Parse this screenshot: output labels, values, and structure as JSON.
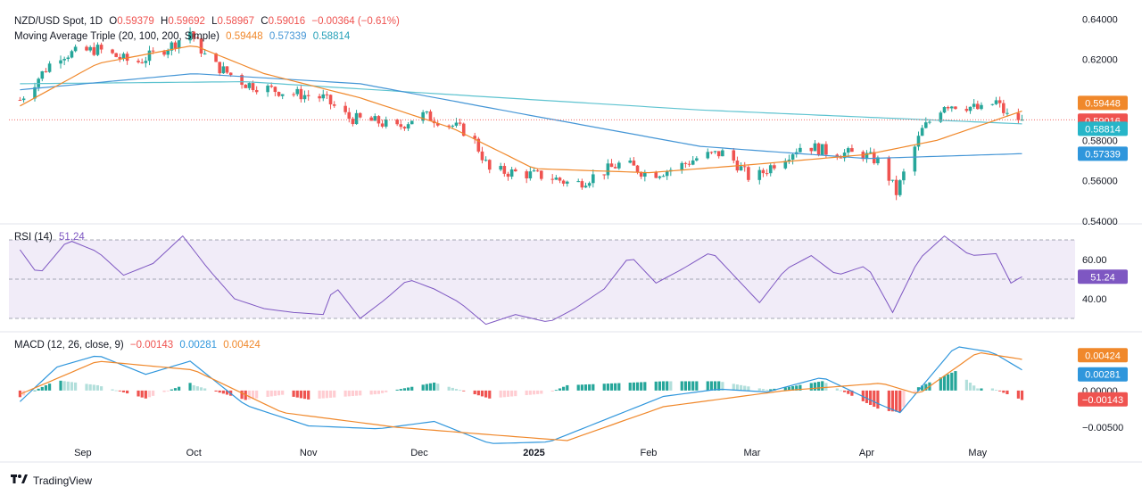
{
  "header": {
    "symbol": "NZD/USD Spot, 1D",
    "open_label": "O",
    "open": "0.59379",
    "high_label": "H",
    "high": "0.59692",
    "low_label": "L",
    "low": "0.58967",
    "close_label": "C",
    "close": "0.59016",
    "change": "−0.00364 (−0.61%)"
  },
  "ma_legend": {
    "title": "Moving Average Triple (20, 100, 200, Simple)",
    "ma20": "0.59448",
    "ma100": "0.57339",
    "ma200": "0.58814"
  },
  "rsi_legend": {
    "title": "RSI (14)",
    "value": "51.24"
  },
  "macd_legend": {
    "title": "MACD (12, 26, close, 9)",
    "hist": "−0.00143",
    "macd": "0.00281",
    "signal": "0.00424"
  },
  "footer": {
    "brand": "TradingView"
  },
  "colors": {
    "up": "#26a69a",
    "down": "#ef5350",
    "ma20": "#f0882b",
    "ma100": "#4596d6",
    "ma200": "#5ec3d0",
    "rsi": "#7e57c2",
    "macd": "#2f96dc",
    "signal": "#f0882b",
    "hist_up_strong": "#26a69a",
    "hist_up_weak": "#b2dfdb",
    "hist_down_strong": "#ef5350",
    "hist_down_weak": "#ffcdd2"
  },
  "chart_data": [
    {
      "type": "candlestick",
      "name": "NZD/USD Spot, 1D",
      "x_tick_labels": [
        "Sep",
        "Oct",
        "Nov",
        "Dec",
        "2025",
        "Feb",
        "Mar",
        "Apr",
        "May"
      ],
      "y_tick_labels": [
        "0.64000",
        "0.62000",
        "0.60000",
        "0.58000",
        "0.56000",
        "0.54000"
      ],
      "ylim": [
        0.54,
        0.645
      ],
      "close_anchors": [
        {
          "date": "2024-08-15",
          "close": 0.6
        },
        {
          "date": "2024-08-25",
          "close": 0.622
        },
        {
          "date": "2024-09-05",
          "close": 0.625
        },
        {
          "date": "2024-09-15",
          "close": 0.618
        },
        {
          "date": "2024-09-25",
          "close": 0.627
        },
        {
          "date": "2024-09-30",
          "close": 0.634
        },
        {
          "date": "2024-10-05",
          "close": 0.619
        },
        {
          "date": "2024-10-15",
          "close": 0.608
        },
        {
          "date": "2024-10-25",
          "close": 0.604
        },
        {
          "date": "2024-11-05",
          "close": 0.601
        },
        {
          "date": "2024-11-12",
          "close": 0.591
        },
        {
          "date": "2024-11-20",
          "close": 0.589
        },
        {
          "date": "2024-11-25",
          "close": 0.586
        },
        {
          "date": "2024-12-01",
          "close": 0.593
        },
        {
          "date": "2024-12-08",
          "close": 0.589
        },
        {
          "date": "2024-12-15",
          "close": 0.583
        },
        {
          "date": "2024-12-20",
          "close": 0.565
        },
        {
          "date": "2024-12-27",
          "close": 0.564
        },
        {
          "date": "2025-01-05",
          "close": 0.562
        },
        {
          "date": "2025-01-12",
          "close": 0.558
        },
        {
          "date": "2025-01-18",
          "close": 0.563
        },
        {
          "date": "2025-01-25",
          "close": 0.569
        },
        {
          "date": "2025-02-01",
          "close": 0.563
        },
        {
          "date": "2025-02-08",
          "close": 0.566
        },
        {
          "date": "2025-02-15",
          "close": 0.572
        },
        {
          "date": "2025-02-22",
          "close": 0.574
        },
        {
          "date": "2025-03-01",
          "close": 0.56
        },
        {
          "date": "2025-03-08",
          "close": 0.57
        },
        {
          "date": "2025-03-15",
          "close": 0.578
        },
        {
          "date": "2025-03-22",
          "close": 0.574
        },
        {
          "date": "2025-03-31",
          "close": 0.573
        },
        {
          "date": "2025-04-05",
          "close": 0.569
        },
        {
          "date": "2025-04-09",
          "close": 0.554
        },
        {
          "date": "2025-04-12",
          "close": 0.568
        },
        {
          "date": "2025-04-16",
          "close": 0.585
        },
        {
          "date": "2025-04-22",
          "close": 0.598
        },
        {
          "date": "2025-04-28",
          "close": 0.597
        },
        {
          "date": "2025-05-02",
          "close": 0.595
        },
        {
          "date": "2025-05-06",
          "close": 0.599
        },
        {
          "date": "2025-05-09",
          "close": 0.592
        },
        {
          "date": "2025-05-13",
          "close": 0.59016
        }
      ],
      "ma20_points": [
        {
          "date": "2024-08-15",
          "value": 0.597
        },
        {
          "date": "2024-09-05",
          "value": 0.618
        },
        {
          "date": "2024-10-01",
          "value": 0.627
        },
        {
          "date": "2024-10-20",
          "value": 0.613
        },
        {
          "date": "2024-11-15",
          "value": 0.601
        },
        {
          "date": "2024-12-10",
          "value": 0.586
        },
        {
          "date": "2025-01-01",
          "value": 0.566
        },
        {
          "date": "2025-02-01",
          "value": 0.564
        },
        {
          "date": "2025-03-01",
          "value": 0.568
        },
        {
          "date": "2025-04-01",
          "value": 0.573
        },
        {
          "date": "2025-04-20",
          "value": 0.58
        },
        {
          "date": "2025-05-13",
          "value": 0.59448
        }
      ],
      "ma100_points": [
        {
          "date": "2024-08-15",
          "value": 0.605
        },
        {
          "date": "2024-10-01",
          "value": 0.613
        },
        {
          "date": "2024-11-15",
          "value": 0.608
        },
        {
          "date": "2025-01-01",
          "value": 0.592
        },
        {
          "date": "2025-02-15",
          "value": 0.577
        },
        {
          "date": "2025-04-01",
          "value": 0.571
        },
        {
          "date": "2025-05-13",
          "value": 0.57339
        }
      ],
      "ma200_points": [
        {
          "date": "2024-08-15",
          "value": 0.608
        },
        {
          "date": "2024-10-15",
          "value": 0.609
        },
        {
          "date": "2024-12-15",
          "value": 0.602
        },
        {
          "date": "2025-02-15",
          "value": 0.595
        },
        {
          "date": "2025-05-13",
          "value": 0.58814
        }
      ],
      "last_values": {
        "ma200_upper": "0.59448",
        "close": "0.59016",
        "ma200": "0.58814",
        "ma100": "0.57339"
      }
    },
    {
      "type": "line",
      "name": "RSI (14)",
      "y_tick_labels": [
        "60.00",
        "40.00"
      ],
      "levels": [
        70,
        50,
        30
      ],
      "ylim": [
        25,
        75
      ],
      "points": [
        {
          "date": "2024-08-15",
          "value": 65
        },
        {
          "date": "2024-08-20",
          "value": 52
        },
        {
          "date": "2024-08-28",
          "value": 70
        },
        {
          "date": "2024-09-05",
          "value": 64
        },
        {
          "date": "2024-09-12",
          "value": 52
        },
        {
          "date": "2024-09-20",
          "value": 58
        },
        {
          "date": "2024-09-28",
          "value": 72
        },
        {
          "date": "2024-10-05",
          "value": 55
        },
        {
          "date": "2024-10-12",
          "value": 40
        },
        {
          "date": "2024-10-20",
          "value": 35
        },
        {
          "date": "2024-10-28",
          "value": 33
        },
        {
          "date": "2024-11-05",
          "value": 32
        },
        {
          "date": "2024-11-08",
          "value": 47
        },
        {
          "date": "2024-11-15",
          "value": 30
        },
        {
          "date": "2024-11-22",
          "value": 40
        },
        {
          "date": "2024-11-28",
          "value": 50
        },
        {
          "date": "2024-12-05",
          "value": 45
        },
        {
          "date": "2024-12-12",
          "value": 38
        },
        {
          "date": "2024-12-19",
          "value": 27
        },
        {
          "date": "2024-12-27",
          "value": 32
        },
        {
          "date": "2025-01-05",
          "value": 28
        },
        {
          "date": "2025-01-12",
          "value": 35
        },
        {
          "date": "2025-01-20",
          "value": 45
        },
        {
          "date": "2025-01-27",
          "value": 62
        },
        {
          "date": "2025-02-03",
          "value": 48
        },
        {
          "date": "2025-02-10",
          "value": 55
        },
        {
          "date": "2025-02-18",
          "value": 64
        },
        {
          "date": "2025-02-25",
          "value": 50
        },
        {
          "date": "2025-03-03",
          "value": 38
        },
        {
          "date": "2025-03-10",
          "value": 55
        },
        {
          "date": "2025-03-17",
          "value": 62
        },
        {
          "date": "2025-03-24",
          "value": 52
        },
        {
          "date": "2025-04-01",
          "value": 57
        },
        {
          "date": "2025-04-08",
          "value": 33
        },
        {
          "date": "2025-04-15",
          "value": 60
        },
        {
          "date": "2025-04-22",
          "value": 72
        },
        {
          "date": "2025-04-29",
          "value": 62
        },
        {
          "date": "2025-05-06",
          "value": 63
        },
        {
          "date": "2025-05-10",
          "value": 48
        },
        {
          "date": "2025-05-13",
          "value": 51.24
        }
      ]
    },
    {
      "type": "line+histogram",
      "name": "MACD (12, 26, close, 9)",
      "y_tick_labels": [
        "0.00000",
        "−0.00500"
      ],
      "ylim": [
        -0.0085,
        0.0075
      ],
      "macd_points": [
        {
          "date": "2024-08-15",
          "value": -0.0015
        },
        {
          "date": "2024-08-25",
          "value": 0.0032
        },
        {
          "date": "2024-09-05",
          "value": 0.0048
        },
        {
          "date": "2024-09-18",
          "value": 0.0022
        },
        {
          "date": "2024-09-30",
          "value": 0.004
        },
        {
          "date": "2024-10-15",
          "value": -0.002
        },
        {
          "date": "2024-11-01",
          "value": -0.0048
        },
        {
          "date": "2024-11-20",
          "value": -0.0052
        },
        {
          "date": "2024-12-05",
          "value": -0.0042
        },
        {
          "date": "2024-12-20",
          "value": -0.0072
        },
        {
          "date": "2025-01-05",
          "value": -0.007
        },
        {
          "date": "2025-01-20",
          "value": -0.004
        },
        {
          "date": "2025-02-05",
          "value": -0.0008
        },
        {
          "date": "2025-02-20",
          "value": 0.0002
        },
        {
          "date": "2025-03-05",
          "value": -0.0002
        },
        {
          "date": "2025-03-20",
          "value": 0.0018
        },
        {
          "date": "2025-04-05",
          "value": -0.002
        },
        {
          "date": "2025-04-10",
          "value": -0.003
        },
        {
          "date": "2025-04-25",
          "value": 0.006
        },
        {
          "date": "2025-05-05",
          "value": 0.0052
        },
        {
          "date": "2025-05-13",
          "value": 0.00281
        }
      ],
      "signal_points": [
        {
          "date": "2024-08-15",
          "value": -0.0005
        },
        {
          "date": "2024-09-05",
          "value": 0.004
        },
        {
          "date": "2024-10-01",
          "value": 0.0028
        },
        {
          "date": "2024-10-25",
          "value": -0.003
        },
        {
          "date": "2024-11-25",
          "value": -0.005
        },
        {
          "date": "2024-12-20",
          "value": -0.006
        },
        {
          "date": "2025-01-10",
          "value": -0.0068
        },
        {
          "date": "2025-02-05",
          "value": -0.0022
        },
        {
          "date": "2025-03-10",
          "value": 0.0
        },
        {
          "date": "2025-04-05",
          "value": 0.001
        },
        {
          "date": "2025-04-15",
          "value": -0.0005
        },
        {
          "date": "2025-05-01",
          "value": 0.0052
        },
        {
          "date": "2025-05-13",
          "value": 0.00424
        }
      ]
    }
  ]
}
